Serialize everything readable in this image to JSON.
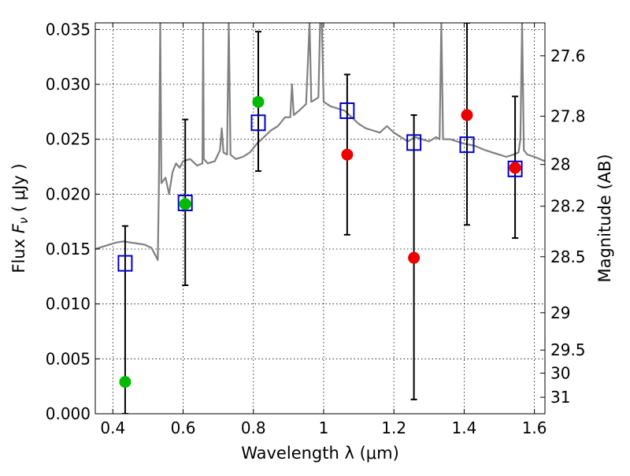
{
  "chart_data": {
    "type": "scatter",
    "title": "",
    "xlabel": "Wavelength  λ (μm)",
    "ylabel": "Flux  F_ν  ( μJy )",
    "ylabel_right": "Magnitude (AB)",
    "xlim": [
      0.35,
      1.63
    ],
    "ylim": [
      0.0,
      0.0356
    ],
    "x_ticks": [
      0.4,
      0.6,
      0.8,
      1.0,
      1.2,
      1.4,
      1.6
    ],
    "x_tick_labels": [
      "0.4",
      "0.6",
      "0.8",
      "1",
      "1.2",
      "1.4",
      "1.6"
    ],
    "y_ticks": [
      0.0,
      0.005,
      0.01,
      0.015,
      0.02,
      0.025,
      0.03,
      0.035
    ],
    "y_tick_labels": [
      "0.000",
      "0.005",
      "0.010",
      "0.015",
      "0.020",
      "0.025",
      "0.030",
      "0.035"
    ],
    "right_ticks": [
      {
        "label": "27.6",
        "flux": 0.0326
      },
      {
        "label": "27.8",
        "flux": 0.0271
      },
      {
        "label": "28",
        "flux": 0.0227
      },
      {
        "label": "28.2",
        "flux": 0.0189
      },
      {
        "label": "28.5",
        "flux": 0.0143
      },
      {
        "label": "29",
        "flux": 0.0092
      },
      {
        "label": "29.5",
        "flux": 0.0058
      },
      {
        "label": "30",
        "flux": 0.0037
      },
      {
        "label": "31",
        "flux": 0.0015
      }
    ],
    "grid": true,
    "series": [
      {
        "kind": "model-spectrum",
        "color": "#808080",
        "points": [
          [
            0.35,
            0.015
          ],
          [
            0.37,
            0.0152
          ],
          [
            0.39,
            0.0154
          ],
          [
            0.41,
            0.0156
          ],
          [
            0.43,
            0.0157
          ],
          [
            0.45,
            0.0156
          ],
          [
            0.47,
            0.0155
          ],
          [
            0.49,
            0.0154
          ],
          [
            0.51,
            0.0151
          ],
          [
            0.525,
            0.0142
          ],
          [
            0.528,
            0.014
          ],
          [
            0.531,
            0.0205
          ],
          [
            0.535,
            0.0356
          ],
          [
            0.538,
            0.021
          ],
          [
            0.55,
            0.0215
          ],
          [
            0.56,
            0.02
          ],
          [
            0.57,
            0.022
          ],
          [
            0.58,
            0.0228
          ],
          [
            0.59,
            0.0224
          ],
          [
            0.6,
            0.023
          ],
          [
            0.62,
            0.0232
          ],
          [
            0.64,
            0.0226
          ],
          [
            0.655,
            0.0228
          ],
          [
            0.657,
            0.0356
          ],
          [
            0.659,
            0.0232
          ],
          [
            0.67,
            0.0228
          ],
          [
            0.69,
            0.023
          ],
          [
            0.705,
            0.024
          ],
          [
            0.71,
            0.026
          ],
          [
            0.715,
            0.0238
          ],
          [
            0.725,
            0.0236
          ],
          [
            0.73,
            0.0356
          ],
          [
            0.735,
            0.0236
          ],
          [
            0.75,
            0.0232
          ],
          [
            0.77,
            0.0234
          ],
          [
            0.79,
            0.0238
          ],
          [
            0.81,
            0.0246
          ],
          [
            0.83,
            0.0252
          ],
          [
            0.85,
            0.0258
          ],
          [
            0.87,
            0.0262
          ],
          [
            0.89,
            0.027
          ],
          [
            0.905,
            0.027
          ],
          [
            0.91,
            0.03
          ],
          [
            0.915,
            0.0272
          ],
          [
            0.93,
            0.0276
          ],
          [
            0.95,
            0.0282
          ],
          [
            0.96,
            0.0356
          ],
          [
            0.965,
            0.0284
          ],
          [
            0.985,
            0.0288
          ],
          [
            0.99,
            0.0356
          ],
          [
            0.995,
            0.0356
          ],
          [
            1.0,
            0.0284
          ],
          [
            1.02,
            0.028
          ],
          [
            1.04,
            0.0278
          ],
          [
            1.06,
            0.0276
          ],
          [
            1.08,
            0.027
          ],
          [
            1.1,
            0.0264
          ],
          [
            1.12,
            0.026
          ],
          [
            1.14,
            0.0258
          ],
          [
            1.16,
            0.0256
          ],
          [
            1.18,
            0.0262
          ],
          [
            1.2,
            0.0256
          ],
          [
            1.22,
            0.0252
          ],
          [
            1.24,
            0.0248
          ],
          [
            1.26,
            0.0252
          ],
          [
            1.28,
            0.025
          ],
          [
            1.3,
            0.0248
          ],
          [
            1.32,
            0.0252
          ],
          [
            1.33,
            0.025
          ],
          [
            1.335,
            0.0356
          ],
          [
            1.34,
            0.025
          ],
          [
            1.36,
            0.025
          ],
          [
            1.38,
            0.0248
          ],
          [
            1.4,
            0.0246
          ],
          [
            1.43,
            0.0244
          ],
          [
            1.46,
            0.024
          ],
          [
            1.48,
            0.0238
          ],
          [
            1.5,
            0.0236
          ],
          [
            1.52,
            0.0234
          ],
          [
            1.54,
            0.0236
          ],
          [
            1.555,
            0.0238
          ],
          [
            1.56,
            0.025
          ],
          [
            1.565,
            0.0356
          ],
          [
            1.57,
            0.024
          ],
          [
            1.58,
            0.0236
          ],
          [
            1.6,
            0.0234
          ],
          [
            1.63,
            0.023
          ]
        ]
      },
      {
        "kind": "error-bars",
        "color": "#000000",
        "points": [
          {
            "x": 0.435,
            "low": 0.0,
            "high": 0.0171
          },
          {
            "x": 0.606,
            "low": 0.0117,
            "high": 0.0268
          },
          {
            "x": 0.814,
            "low": 0.0221,
            "high": 0.0348
          },
          {
            "x": 1.067,
            "low": 0.0163,
            "high": 0.0309
          },
          {
            "x": 1.257,
            "low": 0.0013,
            "high": 0.0272
          },
          {
            "x": 1.408,
            "low": 0.0172,
            "high": 0.0356
          },
          {
            "x": 1.545,
            "low": 0.016,
            "high": 0.0289
          }
        ]
      },
      {
        "kind": "model-bandpass-squares",
        "color": "#0000cc",
        "points": [
          [
            0.435,
            0.0137
          ],
          [
            0.606,
            0.0192
          ],
          [
            0.814,
            0.0265
          ],
          [
            1.067,
            0.0276
          ],
          [
            1.257,
            0.0247
          ],
          [
            1.408,
            0.0245
          ],
          [
            1.545,
            0.0223
          ]
        ]
      },
      {
        "kind": "observed-green",
        "color": "#00bb00",
        "points": [
          [
            0.435,
            0.0029
          ],
          [
            0.606,
            0.0191
          ],
          [
            0.814,
            0.0284
          ]
        ]
      },
      {
        "kind": "observed-red",
        "color": "#ee0000",
        "points": [
          [
            1.067,
            0.0236
          ],
          [
            1.257,
            0.0142
          ],
          [
            1.408,
            0.0272
          ],
          [
            1.545,
            0.0224
          ]
        ]
      }
    ]
  }
}
